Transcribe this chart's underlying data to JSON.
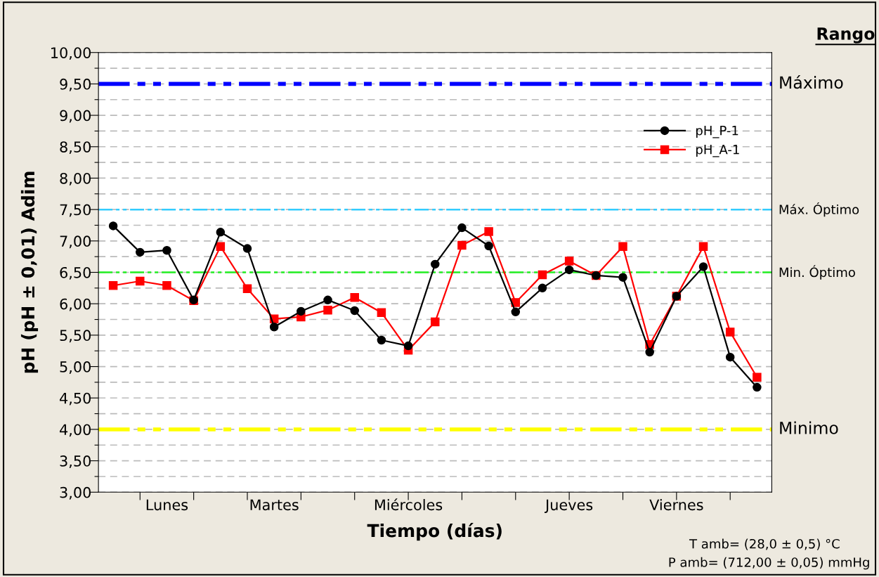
{
  "chart_data": {
    "type": "line",
    "xlabel": "Tiempo (días)",
    "ylabel": "pH (pH ± 0,01) Adim",
    "categories": [
      null,
      null,
      "Lunes",
      null,
      null,
      null,
      "Martes",
      null,
      null,
      null,
      null,
      "Miércoles",
      null,
      null,
      null,
      null,
      null,
      "Jueves",
      null,
      null,
      null,
      "Viernes",
      null,
      null,
      null
    ],
    "series": [
      {
        "name": "pH_P-1",
        "color": "#000000",
        "marker": "circle",
        "values": [
          7.24,
          6.82,
          6.85,
          6.06,
          7.14,
          6.88,
          5.63,
          5.88,
          6.06,
          5.89,
          5.42,
          5.33,
          6.63,
          7.21,
          6.92,
          5.87,
          6.25,
          6.54,
          6.45,
          6.42,
          5.23,
          6.12,
          6.59,
          5.15,
          4.67
        ]
      },
      {
        "name": "pH_A-1",
        "color": "#ff0000",
        "marker": "square",
        "values": [
          6.29,
          6.36,
          6.29,
          6.05,
          6.91,
          6.24,
          5.76,
          5.79,
          5.9,
          6.1,
          5.86,
          5.26,
          5.71,
          6.93,
          7.15,
          6.02,
          6.46,
          6.68,
          6.45,
          6.91,
          5.35,
          6.12,
          6.91,
          5.55,
          4.83
        ]
      }
    ],
    "ylim": [
      3,
      10
    ],
    "yticks": [
      {
        "value": 3,
        "label": "3,00"
      },
      {
        "value": 3.25,
        "label": null
      },
      {
        "value": 3.5,
        "label": "3,50"
      },
      {
        "value": 3.75,
        "label": null
      },
      {
        "value": 4,
        "label": "4,00"
      },
      {
        "value": 4.25,
        "label": null
      },
      {
        "value": 4.5,
        "label": "4,50"
      },
      {
        "value": 4.75,
        "label": null
      },
      {
        "value": 5,
        "label": "5,00"
      },
      {
        "value": 5.25,
        "label": null
      },
      {
        "value": 5.5,
        "label": "5,50"
      },
      {
        "value": 5.75,
        "label": null
      },
      {
        "value": 6,
        "label": "6,00"
      },
      {
        "value": 6.25,
        "label": null
      },
      {
        "value": 6.5,
        "label": "6,50"
      },
      {
        "value": 6.75,
        "label": null
      },
      {
        "value": 7,
        "label": "7,00"
      },
      {
        "value": 7.25,
        "label": null
      },
      {
        "value": 7.5,
        "label": "7,50"
      },
      {
        "value": 7.75,
        "label": null
      },
      {
        "value": 8,
        "label": "8,00"
      },
      {
        "value": 8.25,
        "label": null
      },
      {
        "value": 8.5,
        "label": "8,50"
      },
      {
        "value": 8.75,
        "label": null
      },
      {
        "value": 9,
        "label": "9,00"
      },
      {
        "value": 9.25,
        "label": null
      },
      {
        "value": 9.5,
        "label": "9,50"
      },
      {
        "value": 9.75,
        "label": null
      },
      {
        "value": 10,
        "label": "10,00"
      }
    ],
    "grid": "y",
    "legend": "top right",
    "line_style": "solid",
    "ref_lines": [
      {
        "axis": "y",
        "value": 9.5,
        "label": "Máximo",
        "color": "#0000ff",
        "line_style": "dashed"
      },
      {
        "axis": "y",
        "value": 7.5,
        "label": "Máx. Óptimo",
        "color": "#33ccff",
        "line_style": "dashed"
      },
      {
        "axis": "y",
        "value": 6.5,
        "label": "Min. Óptimo",
        "color": "#22ee22",
        "line_style": "dashed"
      },
      {
        "axis": "y",
        "value": 4.0,
        "label": "Minimo",
        "color": "#ffff00",
        "line_style": "dashed"
      }
    ],
    "annotations": [
      "Rango",
      "T amb= (28,0 ± 0,5) °C",
      "P amb= (712,00 ± 0,05) mmHg"
    ]
  }
}
